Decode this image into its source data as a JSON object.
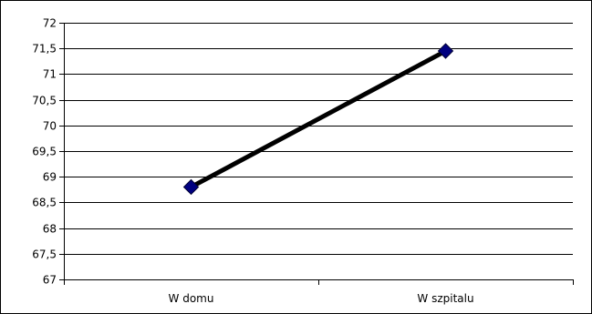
{
  "chart_data": {
    "type": "line",
    "categories": [
      "W domu",
      "W szpitalu"
    ],
    "series": [
      {
        "values": [
          68.8,
          71.45
        ],
        "color": "#000000",
        "marker": "diamond",
        "marker_color": "#000080"
      }
    ],
    "ylim": [
      67,
      72
    ],
    "yticks": [
      67,
      67.5,
      68,
      68.5,
      69,
      69.5,
      70,
      70.5,
      71,
      71.5,
      72
    ],
    "ytick_labels": [
      "67",
      "67,5",
      "68",
      "68,5",
      "69",
      "69,5",
      "70",
      "70,5",
      "71",
      "71,5",
      "72"
    ],
    "xlabel": "",
    "ylabel": "",
    "title": "",
    "grid": true,
    "legend": false,
    "gridline_color": "#000000"
  }
}
